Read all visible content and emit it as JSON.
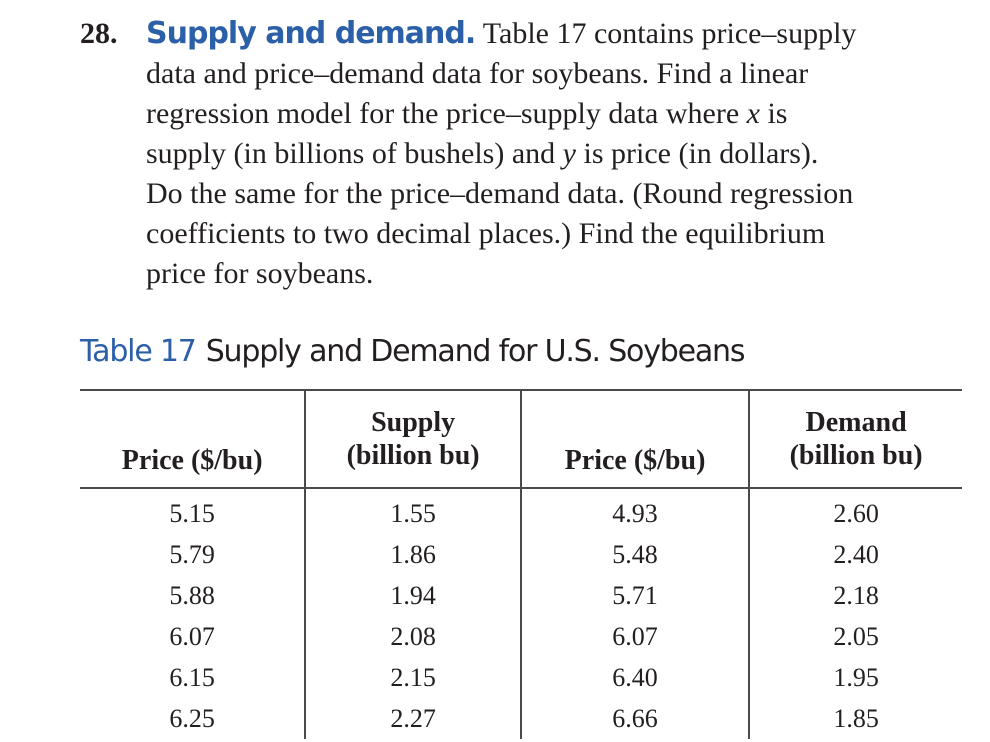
{
  "problem": {
    "number": "28.",
    "heading": "Supply and demand.",
    "lines": [
      "Table 17 contains price–supply",
      "data and price–demand data for soybeans. Find a linear",
      "regression model for the price–supply data where ",
      " is",
      "supply (in billions of bushels) and ",
      " is price (in dollars).",
      "Do the same for the price–demand data. (Round regression",
      "coefficients to two decimal places.) Find the equilibrium",
      "price for soybeans."
    ],
    "var_x": "x",
    "var_y": "y"
  },
  "table": {
    "caption_label": "Table 17",
    "caption_title": "Supply and Demand for U.S. Soybeans",
    "headers": {
      "price1": "Price ($/bu)",
      "supply_line1": "Supply",
      "supply_line2": "(billion bu)",
      "price2": "Price ($/bu)",
      "demand_line1": "Demand",
      "demand_line2": "(billion bu)"
    },
    "rows": [
      [
        "5.15",
        "1.55",
        "4.93",
        "2.60"
      ],
      [
        "5.79",
        "1.86",
        "5.48",
        "2.40"
      ],
      [
        "5.88",
        "1.94",
        "5.71",
        "2.18"
      ],
      [
        "6.07",
        "2.08",
        "6.07",
        "2.05"
      ],
      [
        "6.15",
        "2.15",
        "6.40",
        "1.95"
      ],
      [
        "6.25",
        "2.27",
        "6.66",
        "1.85"
      ]
    ]
  }
}
